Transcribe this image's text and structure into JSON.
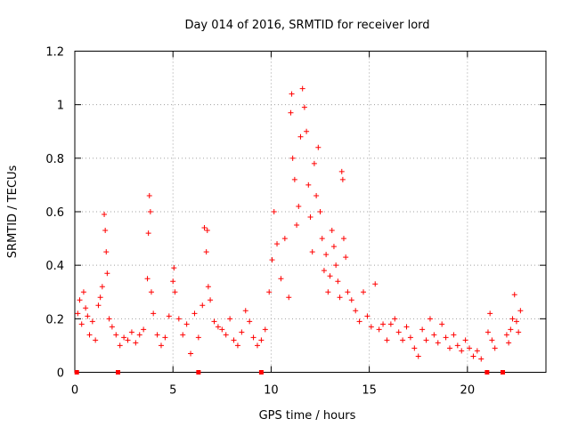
{
  "chart_data": {
    "type": "scatter",
    "title": "Day 014 of 2016, SRMTID for receiver lord",
    "xlabel": "GPS time / hours",
    "ylabel": "SRMTID / TECUs",
    "xlim": [
      0,
      24
    ],
    "ylim": [
      0,
      1.2
    ],
    "x_ticks": [
      0,
      5,
      10,
      15,
      20
    ],
    "y_ticks": [
      0,
      0.2,
      0.4,
      0.6,
      0.8,
      1,
      1.2
    ],
    "x_tick_labels": [
      "0",
      "5",
      "10",
      "15",
      "20"
    ],
    "y_tick_labels": [
      "0",
      "0.2",
      "0.4",
      "0.6",
      "0.8",
      "1",
      "1.2"
    ],
    "grid": true,
    "marker": "+",
    "color": "#ff0000",
    "series": [
      {
        "name": "SRMTID",
        "points": [
          [
            0.15,
            0.22
          ],
          [
            0.25,
            0.27
          ],
          [
            0.35,
            0.18
          ],
          [
            0.45,
            0.3
          ],
          [
            0.55,
            0.24
          ],
          [
            0.65,
            0.21
          ],
          [
            0.75,
            0.14
          ],
          [
            0.9,
            0.19
          ],
          [
            1.05,
            0.12
          ],
          [
            1.2,
            0.25
          ],
          [
            1.3,
            0.28
          ],
          [
            1.4,
            0.32
          ],
          [
            1.5,
            0.59
          ],
          [
            1.55,
            0.53
          ],
          [
            1.6,
            0.45
          ],
          [
            1.65,
            0.37
          ],
          [
            1.75,
            0.2
          ],
          [
            1.9,
            0.17
          ],
          [
            2.1,
            0.14
          ],
          [
            2.3,
            0.1
          ],
          [
            2.5,
            0.13
          ],
          [
            2.7,
            0.12
          ],
          [
            2.9,
            0.15
          ],
          [
            3.1,
            0.11
          ],
          [
            3.3,
            0.14
          ],
          [
            3.5,
            0.16
          ],
          [
            3.7,
            0.35
          ],
          [
            3.75,
            0.52
          ],
          [
            3.8,
            0.66
          ],
          [
            3.85,
            0.6
          ],
          [
            3.9,
            0.3
          ],
          [
            4.0,
            0.22
          ],
          [
            4.2,
            0.14
          ],
          [
            4.4,
            0.1
          ],
          [
            4.6,
            0.13
          ],
          [
            4.8,
            0.21
          ],
          [
            5.0,
            0.34
          ],
          [
            5.05,
            0.39
          ],
          [
            5.1,
            0.3
          ],
          [
            5.3,
            0.2
          ],
          [
            5.5,
            0.14
          ],
          [
            5.7,
            0.18
          ],
          [
            5.9,
            0.07
          ],
          [
            6.1,
            0.22
          ],
          [
            6.3,
            0.13
          ],
          [
            6.5,
            0.25
          ],
          [
            6.6,
            0.54
          ],
          [
            6.7,
            0.45
          ],
          [
            6.75,
            0.53
          ],
          [
            6.8,
            0.32
          ],
          [
            6.9,
            0.27
          ],
          [
            7.1,
            0.19
          ],
          [
            7.3,
            0.17
          ],
          [
            7.5,
            0.16
          ],
          [
            7.7,
            0.14
          ],
          [
            7.9,
            0.2
          ],
          [
            8.1,
            0.12
          ],
          [
            8.3,
            0.1
          ],
          [
            8.5,
            0.15
          ],
          [
            8.7,
            0.23
          ],
          [
            8.9,
            0.19
          ],
          [
            9.1,
            0.13
          ],
          [
            9.3,
            0.1
          ],
          [
            9.5,
            0.12
          ],
          [
            9.7,
            0.16
          ],
          [
            9.9,
            0.3
          ],
          [
            10.05,
            0.42
          ],
          [
            10.15,
            0.6
          ],
          [
            10.3,
            0.48
          ],
          [
            10.5,
            0.35
          ],
          [
            10.7,
            0.5
          ],
          [
            10.9,
            0.28
          ],
          [
            11.0,
            0.97
          ],
          [
            11.05,
            1.04
          ],
          [
            11.1,
            0.8
          ],
          [
            11.2,
            0.72
          ],
          [
            11.3,
            0.55
          ],
          [
            11.4,
            0.62
          ],
          [
            11.5,
            0.88
          ],
          [
            11.6,
            1.06
          ],
          [
            11.7,
            0.99
          ],
          [
            11.8,
            0.9
          ],
          [
            11.9,
            0.7
          ],
          [
            12.0,
            0.58
          ],
          [
            12.1,
            0.45
          ],
          [
            12.2,
            0.78
          ],
          [
            12.3,
            0.66
          ],
          [
            12.4,
            0.84
          ],
          [
            12.5,
            0.6
          ],
          [
            12.6,
            0.5
          ],
          [
            12.7,
            0.38
          ],
          [
            12.8,
            0.44
          ],
          [
            12.9,
            0.3
          ],
          [
            13.0,
            0.36
          ],
          [
            13.1,
            0.53
          ],
          [
            13.2,
            0.47
          ],
          [
            13.3,
            0.4
          ],
          [
            13.4,
            0.34
          ],
          [
            13.5,
            0.28
          ],
          [
            13.6,
            0.75
          ],
          [
            13.65,
            0.72
          ],
          [
            13.7,
            0.5
          ],
          [
            13.8,
            0.43
          ],
          [
            13.9,
            0.3
          ],
          [
            14.1,
            0.27
          ],
          [
            14.3,
            0.23
          ],
          [
            14.5,
            0.19
          ],
          [
            14.7,
            0.3
          ],
          [
            14.9,
            0.21
          ],
          [
            15.1,
            0.17
          ],
          [
            15.3,
            0.33
          ],
          [
            15.5,
            0.16
          ],
          [
            15.7,
            0.18
          ],
          [
            15.9,
            0.12
          ],
          [
            16.1,
            0.18
          ],
          [
            16.3,
            0.2
          ],
          [
            16.5,
            0.15
          ],
          [
            16.7,
            0.12
          ],
          [
            16.9,
            0.17
          ],
          [
            17.1,
            0.13
          ],
          [
            17.3,
            0.09
          ],
          [
            17.5,
            0.06
          ],
          [
            17.7,
            0.16
          ],
          [
            17.9,
            0.12
          ],
          [
            18.1,
            0.2
          ],
          [
            18.3,
            0.14
          ],
          [
            18.5,
            0.11
          ],
          [
            18.7,
            0.18
          ],
          [
            18.9,
            0.13
          ],
          [
            19.1,
            0.09
          ],
          [
            19.3,
            0.14
          ],
          [
            19.5,
            0.1
          ],
          [
            19.7,
            0.08
          ],
          [
            19.9,
            0.12
          ],
          [
            20.1,
            0.09
          ],
          [
            20.3,
            0.06
          ],
          [
            20.5,
            0.08
          ],
          [
            20.7,
            0.05
          ],
          [
            21.05,
            0.15
          ],
          [
            21.15,
            0.22
          ],
          [
            21.25,
            0.12
          ],
          [
            21.4,
            0.09
          ],
          [
            22.0,
            0.14
          ],
          [
            22.1,
            0.11
          ],
          [
            22.2,
            0.16
          ],
          [
            22.3,
            0.2
          ],
          [
            22.4,
            0.29
          ],
          [
            22.5,
            0.19
          ],
          [
            22.6,
            0.15
          ],
          [
            22.7,
            0.23
          ]
        ]
      }
    ],
    "gap_markers_x": [
      0.1,
      2.2,
      6.3,
      9.5,
      21.0,
      21.8
    ]
  }
}
